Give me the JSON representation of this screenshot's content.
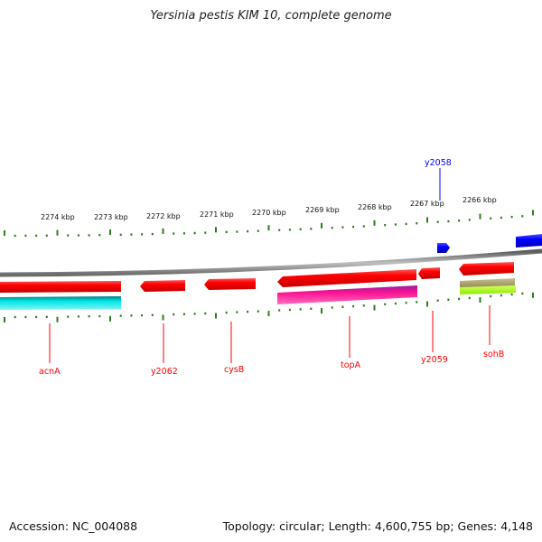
{
  "title": "Yersinia pestis KIM 10, complete genome",
  "footer": {
    "accession": "Accession: NC_004088",
    "summary": "Topology: circular; Length: 4,600,755 bp; Genes: 4,148"
  },
  "scale_labels": [
    "2274 kbp",
    "2273 kbp",
    "2272 kbp",
    "2271 kbp",
    "2270 kbp",
    "2269 kbp",
    "2268 kbp",
    "2267 kbp",
    "2266 kbp"
  ],
  "genes": [
    {
      "name": "acnA",
      "strand": "reverse",
      "color": "#ff0000"
    },
    {
      "name": "y2062",
      "strand": "reverse",
      "color": "#ff0000"
    },
    {
      "name": "cysB",
      "strand": "reverse",
      "color": "#ff0000"
    },
    {
      "name": "topA",
      "strand": "reverse",
      "color": "#ff0000"
    },
    {
      "name": "y2059",
      "strand": "reverse",
      "color": "#ff0000"
    },
    {
      "name": "sohB",
      "strand": "reverse",
      "color": "#ff0000"
    },
    {
      "name": "y2058",
      "strand": "forward",
      "color": "#0000ff"
    }
  ],
  "colors": {
    "backbone": "#8c8c8c",
    "ticks": "#2e7d1e",
    "reverse_gene": "#ff0000",
    "forward_gene": "#0000ff",
    "cyan_feature": "#00e5e5",
    "magenta_feature": "#ff1493",
    "olive_feature": "#a8a060",
    "green_feature": "#88ee00"
  }
}
